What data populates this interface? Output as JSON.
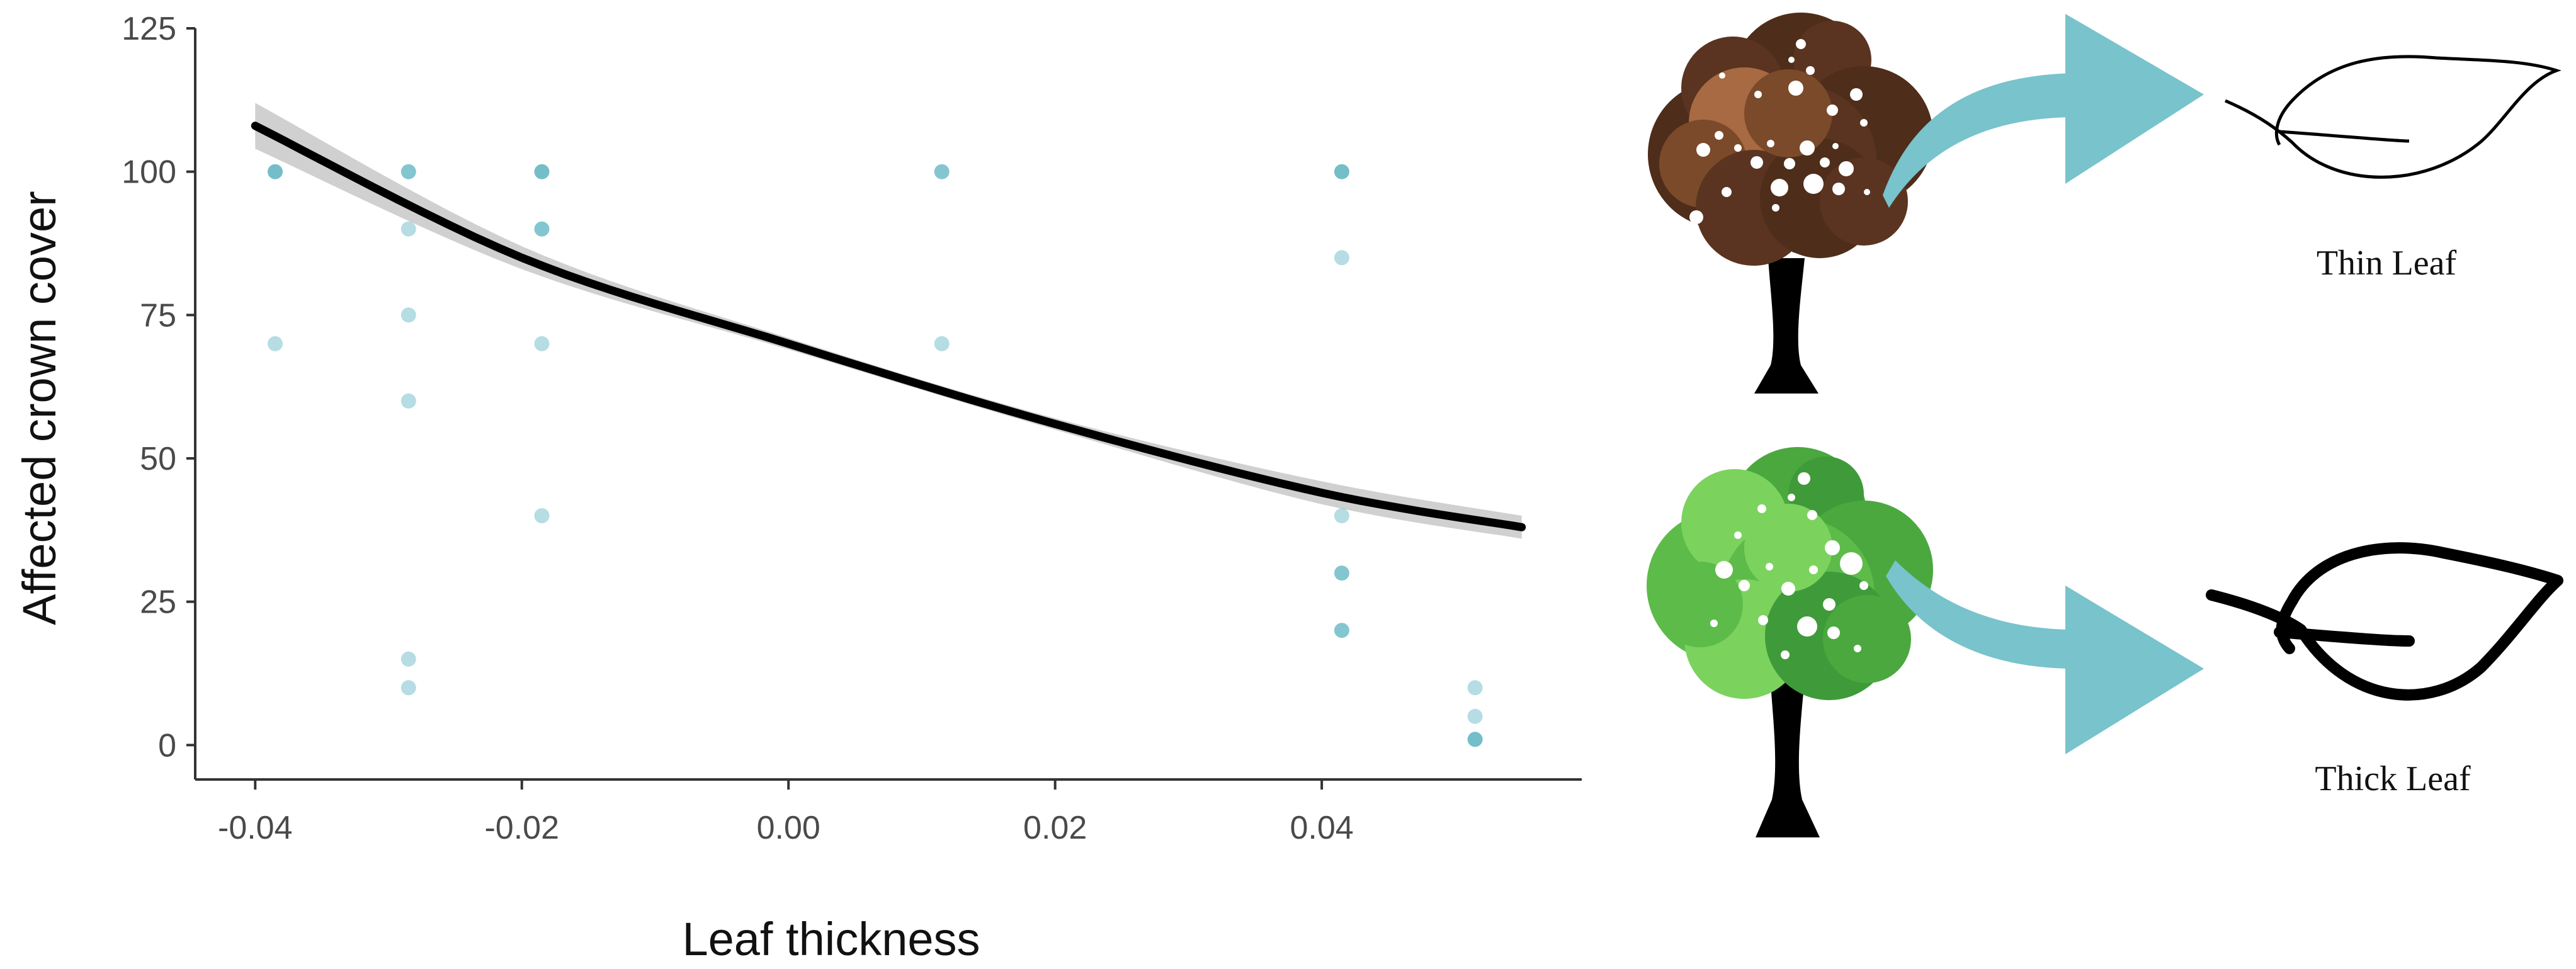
{
  "chart_data": {
    "type": "scatter",
    "xlabel": "Leaf thickness",
    "ylabel": "Affected crown cover",
    "xlim": [
      -0.0445,
      0.0595
    ],
    "ylim": [
      -6,
      125
    ],
    "xticks": [
      -0.04,
      -0.02,
      0.0,
      0.02,
      0.04
    ],
    "xtick_labels": [
      "-0.04",
      "-0.02",
      "0.00",
      "0.02",
      "0.04"
    ],
    "yticks": [
      0,
      25,
      50,
      75,
      100,
      125
    ],
    "ytick_labels": [
      "0",
      "25",
      "50",
      "75",
      "100",
      "125"
    ],
    "grid": false,
    "legend": "none",
    "points": [
      {
        "x": -0.0385,
        "y": 100,
        "alpha": 0.85
      },
      {
        "x": -0.0385,
        "y": 70,
        "alpha": 0.45
      },
      {
        "x": -0.0285,
        "y": 100,
        "alpha": 0.75
      },
      {
        "x": -0.0285,
        "y": 90,
        "alpha": 0.45
      },
      {
        "x": -0.0285,
        "y": 75,
        "alpha": 0.45
      },
      {
        "x": -0.0285,
        "y": 60,
        "alpha": 0.45
      },
      {
        "x": -0.0285,
        "y": 15,
        "alpha": 0.45
      },
      {
        "x": -0.0285,
        "y": 10,
        "alpha": 0.45
      },
      {
        "x": -0.0185,
        "y": 100,
        "alpha": 0.85
      },
      {
        "x": -0.0185,
        "y": 90,
        "alpha": 0.75
      },
      {
        "x": -0.0185,
        "y": 70,
        "alpha": 0.45
      },
      {
        "x": -0.0185,
        "y": 40,
        "alpha": 0.45
      },
      {
        "x": 0.0115,
        "y": 100,
        "alpha": 0.75
      },
      {
        "x": 0.0115,
        "y": 70,
        "alpha": 0.45
      },
      {
        "x": 0.0415,
        "y": 100,
        "alpha": 0.85
      },
      {
        "x": 0.0415,
        "y": 85,
        "alpha": 0.45
      },
      {
        "x": 0.0415,
        "y": 40,
        "alpha": 0.45
      },
      {
        "x": 0.0415,
        "y": 30,
        "alpha": 0.75
      },
      {
        "x": 0.0415,
        "y": 20,
        "alpha": 0.75
      },
      {
        "x": 0.0515,
        "y": 10,
        "alpha": 0.45
      },
      {
        "x": 0.0515,
        "y": 5,
        "alpha": 0.45
      },
      {
        "x": 0.0515,
        "y": 1,
        "alpha": 0.85
      }
    ],
    "fit_line": {
      "x": [
        -0.04,
        -0.02,
        0.0,
        0.02,
        0.04,
        0.055
      ],
      "y": [
        108,
        85,
        70,
        56,
        44,
        38
      ]
    },
    "confidence_band": {
      "x": [
        -0.04,
        -0.02,
        0.0,
        0.02,
        0.04,
        0.055
      ],
      "lower": [
        104,
        83,
        69,
        55,
        42,
        36
      ],
      "upper": [
        112,
        87,
        71,
        57,
        46,
        40
      ]
    },
    "colors": {
      "points": "#5ab3c0",
      "fit_line": "#000000",
      "confidence_band": "#c8c8c8",
      "axis": "#333333"
    }
  },
  "illustration": {
    "top": {
      "caption": "Thin Leaf",
      "canopy_colors": [
        "#4e2d1a",
        "#7a4a2a",
        "#a86a42",
        "#5a3420"
      ],
      "arrow_color": "#78c3cc",
      "icons": [
        "tree-icon",
        "curved-arrow-icon",
        "leaf-outline-icon"
      ]
    },
    "bottom": {
      "caption": "Thick Leaf",
      "canopy_colors": [
        "#3f9a3a",
        "#5dbb4a",
        "#7bd35e",
        "#4aa83f"
      ],
      "arrow_color": "#78c3cc",
      "icons": [
        "tree-icon",
        "curved-arrow-icon",
        "leaf-outline-icon"
      ]
    }
  }
}
